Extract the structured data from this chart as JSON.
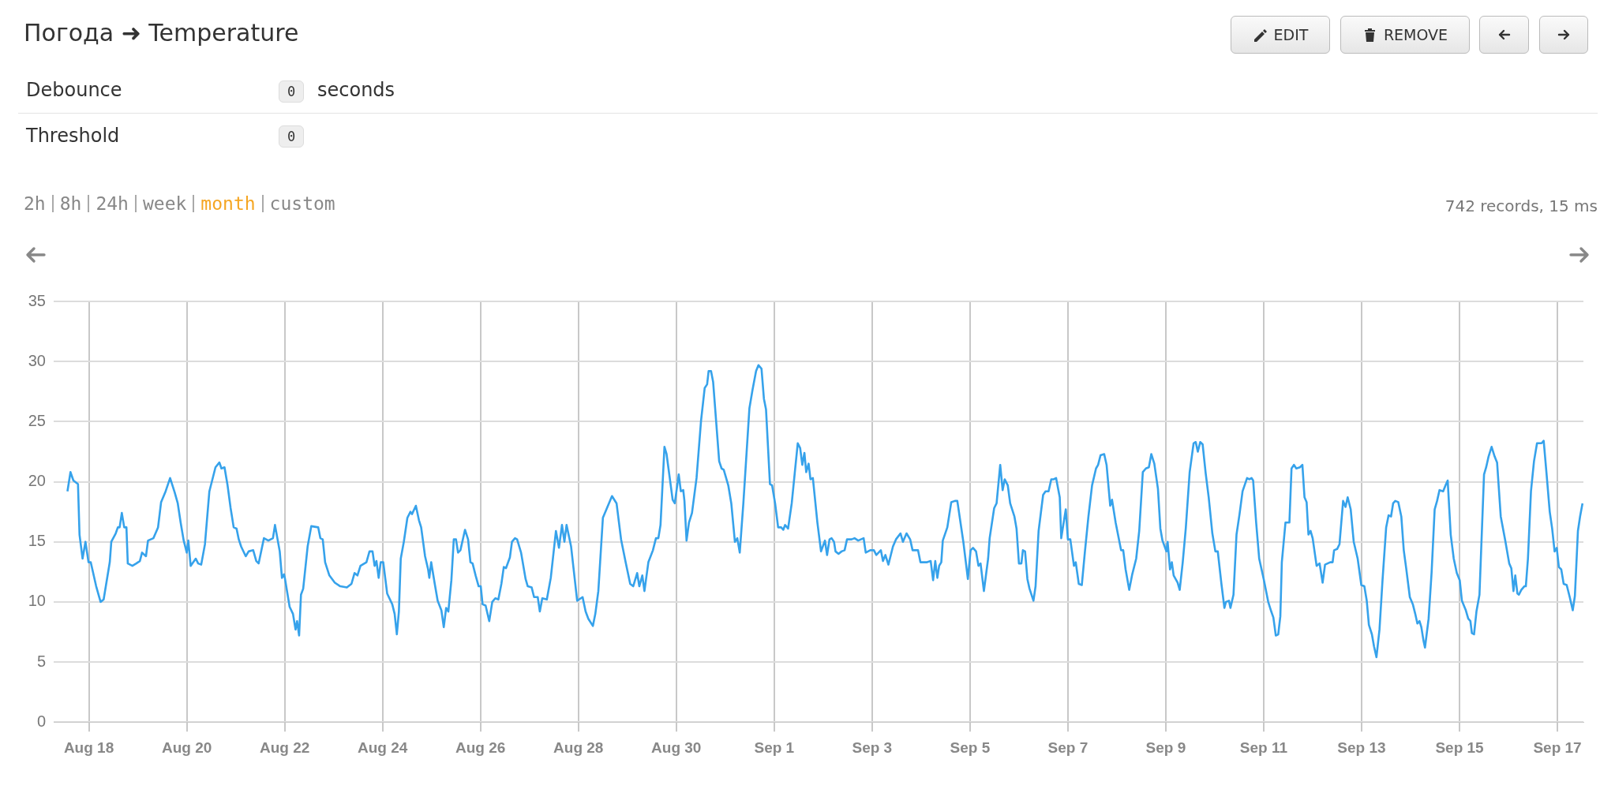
{
  "chart_data": {
    "type": "line",
    "title": "Погода ➜ Temperature",
    "annotations": [
      "EDIT",
      "REMOVE",
      "Debounce",
      "0",
      "seconds",
      "Threshold",
      "0",
      "2h",
      "8h",
      "24h",
      "week",
      "month",
      "custom",
      "742 records, 15 ms"
    ],
    "color": "#36a2eb",
    "marker": "none",
    "grid": true,
    "xlim": [
      "--08-17T06:45",
      "--09-17T12:45"
    ],
    "xticks": [
      {
        "value": "--08-18",
        "label": "Aug 18"
      },
      {
        "value": "--08-20",
        "label": "Aug 20"
      },
      {
        "value": "--08-22",
        "label": "Aug 22"
      },
      {
        "value": "--08-24",
        "label": "Aug 24"
      },
      {
        "value": "--08-26",
        "label": "Aug 26"
      },
      {
        "value": "--08-28",
        "label": "Aug 28"
      },
      {
        "value": "--08-30",
        "label": "Aug 30"
      },
      {
        "value": "--09-01",
        "label": "Sep 1"
      },
      {
        "value": "--09-03",
        "label": "Sep 3"
      },
      {
        "value": "--09-05",
        "label": "Sep 5"
      },
      {
        "value": "--09-07",
        "label": "Sep 7"
      },
      {
        "value": "--09-09",
        "label": "Sep 9"
      },
      {
        "value": "--09-11",
        "label": "Sep 11"
      },
      {
        "value": "--09-13",
        "label": "Sep 13"
      },
      {
        "value": "--09-15",
        "label": "Sep 15"
      },
      {
        "value": "--09-17",
        "label": "Sep 17"
      }
    ],
    "ylim": [
      0,
      35
    ],
    "yticks": [
      0,
      5,
      10,
      15,
      20,
      25,
      30,
      35
    ],
    "x": [
      "--08-17T13:30",
      "--08-17T15:00",
      "--08-17T16:25",
      "--08-17T18:40",
      "--08-17T19:25",
      "--08-17T20:55",
      "--08-17T22:20",
      "--08-17T23:50",
      "--08-18T00:55",
      "--08-18T03:35",
      "--08-18T05:45",
      "--08-18T07:15",
      "--08-18T10:15",
      "--08-18T11:00",
      "--08-18T13:10",
      "--08-18T14:13",
      "--08-18T15:05",
      "--08-18T16:10",
      "--08-18T17:20",
      "--08-18T18:25",
      "--08-18T19:05",
      "--08-18T21:20",
      "--08-18T23:15",
      "--08-19T01:00",
      "--08-19T02:05",
      "--08-19T04:00",
      "--08-19T05:00",
      "--08-19T07:40",
      "--08-19T09:55",
      "--08-19T11:25",
      "--08-19T13:38",
      "--08-19T15:50",
      "--08-19T18:05",
      "--08-19T19:35",
      "--08-19T21:00",
      "--08-19T22:30",
      "--08-20T00:00",
      "--08-20T00:45",
      "--08-20T01:55",
      "--08-20T04:25",
      "--08-20T05:35",
      "--08-20T07:05",
      "--08-20T08:55",
      "--08-20T11:05",
      "--08-20T12:35",
      "--08-20T14:05",
      "--08-20T16:00",
      "--08-20T17:00",
      "--08-20T18:30",
      "--08-20T20:00",
      "--08-20T21:30",
      "--08-20T23:00",
      "--08-21T00:25",
      "--08-21T01:30",
      "--08-21T02:40",
      "--08-21T04:55",
      "--08-21T06:20",
      "--08-21T08:35",
      "--08-21T10:05",
      "--08-21T11:15",
      "--08-21T13:50",
      "--08-21T16:00",
      "--08-21T18:15",
      "--08-21T19:15",
      "--08-21T21:35",
      "--08-21T22:40",
      "--08-21T23:40",
      "--08-22T00:05",
      "--08-22T02:25",
      "--08-22T04:05",
      "--08-22T05:20",
      "--08-22T06:05",
      "--08-22T07:05",
      "--08-22T08:00",
      "--08-22T09:05",
      "--08-22T11:15",
      "--08-22T13:03",
      "--08-22T16:27",
      "--08-22T17:30",
      "--08-22T18:40",
      "--08-22T19:50",
      "--08-22T21:55",
      "--08-23T00:35",
      "--08-23T03:15",
      "--08-23T06:30",
      "--08-23T08:45",
      "--08-23T10:15",
      "--08-23T11:40",
      "--08-23T13:10",
      "--08-23T16:05",
      "--08-23T17:35",
      "--08-23T19:05",
      "--08-23T20:05",
      "--08-23T21:00",
      "--08-23T22:05",
      "--08-23T23:05",
      "--08-24T00:20",
      "--08-24T02:15",
      "--08-24T04:45",
      "--08-24T05:55",
      "--08-24T07:00",
      "--08-24T08:00",
      "--08-24T08:55",
      "--08-24T10:25",
      "--08-24T12:10",
      "--08-24T13:40",
      "--08-24T14:25",
      "--08-24T16:20",
      "--08-24T17:50",
      "--08-24T18:55",
      "--08-24T20:50",
      "--08-24T22:20",
      "--08-24T22:55",
      "--08-24T23:50",
      "--08-25T01:35",
      "--08-25T03:00",
      "--08-25T04:50",
      "--08-25T06:00",
      "--08-25T07:10",
      "--08-25T08:15",
      "--08-25T09:44",
      "--08-25T10:55",
      "--08-25T12:00",
      "--08-25T13:00",
      "--08-25T14:10",
      "--08-25T16:25",
      "--08-25T17:55",
      "--08-25T19:05",
      "--08-25T20:08",
      "--08-25T21:37",
      "--08-25T23:06",
      "--08-26T00:08",
      "--08-26T01:02",
      "--08-26T02:31",
      "--08-26T04:18",
      "--08-26T05:47",
      "--08-26T07:16",
      "--08-26T08:46",
      "--08-26T10:15",
      "--08-26T11:26",
      "--08-26T12:29",
      "--08-26T14:25",
      "--08-26T15:27",
      "--08-26T16:56",
      "--08-26T17:58",
      "--08-26T19:54",
      "--08-26T22:08",
      "--08-26T23:10",
      "--08-27T01:06",
      "--08-27T02:17",
      "--08-27T04:04",
      "--08-27T05:06",
      "--08-27T06:18",
      "--08-27T08:32",
      "--08-27T10:28",
      "--08-27T13:00",
      "--08-27T14:29",
      "--08-27T15:58",
      "--08-27T17:09",
      "--08-27T18:12",
      "--08-27T20:26",
      "--08-27T21:37",
      "--08-27T23:24",
      "--08-28T02:04",
      "--08-28T03:33",
      "--08-28T04:53",
      "--08-28T07:07",
      "--08-28T08:18",
      "--08-28T09:47",
      "--08-28T12:01",
      "--08-28T14:15",
      "--08-28T16:29",
      "--08-28T18:43",
      "--08-28T20:56",
      "--08-28T23:10",
      "--08-29T01:24",
      "--08-29T02:53",
      "--08-29T04:49",
      "--08-29T05:52",
      "--08-29T07:21",
      "--08-29T08:23",
      "--08-29T10:19",
      "--08-29T12:33",
      "--08-29T14:02",
      "--08-29T15:13",
      "--08-29T16:16",
      "--08-29T18:12",
      "--08-29T19:14",
      "--08-29T22:13",
      "--08-29T23:16",
      "--08-30T01:12",
      "--08-30T02:14",
      "--08-30T03:25",
      "--08-30T04:00",
      "--08-30T05:02",
      "--08-30T06:13",
      "--08-30T07:42",
      "--08-30T09:56",
      "--08-30T12:09",
      "--08-30T13:56",
      "--08-30T15:07",
      "--08-30T15:51",
      "--08-30T17:02",
      "--08-30T18:04",
      "--08-30T21:02",
      "--08-30T22:13",
      "--08-30T23:16",
      "--08-31T01:29",
      "--08-31T02:58",
      "--08-31T04:44",
      "--08-31T05:55",
      "--08-31T07:07",
      "--08-31T08:53",
      "--08-31T11:51",
      "--08-31T13:20",
      "--08-31T15:07",
      "--08-31T16:18",
      "--08-31T17:47",
      "--08-31T18:58",
      "--08-31T20:00",
      "--08-31T21:56",
      "--08-31T22:58",
      "--09-01T00:27",
      "--09-01T01:56",
      "--09-01T03:25",
      "--09-01T04:27",
      "--09-01T05:20",
      "--09-01T06:49",
      "--09-01T08:36",
      "--09-01T10:04",
      "--09-01T11:33",
      "--09-01T12:44",
      "--09-01T13:47",
      "--09-01T14:49",
      "--09-01T15:42",
      "--09-01T16:53",
      "--09-01T17:47",
      "--09-01T18:58",
      "--09-01T21:11",
      "--09-01T22:58",
      "--09-02T00:53",
      "--09-02T01:56",
      "--09-02T03:07",
      "--09-02T04:09",
      "--09-02T05:20",
      "--09-02T06:04",
      "--09-02T07:33",
      "--09-02T09:02",
      "--09-02T10:31",
      "--09-02T11:42",
      "--09-02T13:56",
      "--09-02T15:24",
      "--09-02T17:11",
      "--09-02T19:51",
      "--09-02T20:53",
      "--09-02T23:07",
      "--09-03T00:53",
      "--09-03T02:04",
      "--09-03T04:18",
      "--09-03T05:20",
      "--09-03T06:31",
      "--09-03T08:00",
      "--09-03T10:13",
      "--09-03T11:42",
      "--09-03T13:56",
      "--09-03T15:07",
      "--09-03T16:53",
      "--09-03T18:40",
      "--09-03T19:51",
      "--09-03T22:31",
      "--09-03T23:42",
      "--09-04T02:58",
      "--09-04T04:44",
      "--09-04T05:55",
      "--09-04T06:58",
      "--09-04T08:00",
      "--09-04T08:53",
      "--09-04T09:56",
      "--09-04T10:40",
      "--09-04T12:53",
      "--09-04T14:49",
      "--09-04T16:36",
      "--09-04T17:47",
      "--09-04T20:44",
      "--09-04T22:58",
      "--09-05T00:18",
      "--09-05T01:29",
      "--09-05T02:58",
      "--09-05T04:09",
      "--09-05T05:11",
      "--09-05T06:49",
      "--09-05T08:53",
      "--09-05T09:38",
      "--09-05T11:51",
      "--09-05T13:02",
      "--09-05T14:49",
      "--09-05T16:00",
      "--09-05T17:02",
      "--09-05T18:31",
      "--09-05T19:42",
      "--09-05T21:47",
      "--09-05T22:49",
      "--09-06T00:00",
      "--09-06T01:11",
      "--09-06T01:56",
      "--09-06T03:00",
      "--09-06T04:09",
      "--09-06T05:11",
      "--09-06T07:07",
      "--09-06T08:09",
      "--09-06T09:38",
      "--09-06T11:51",
      "--09-06T13:02",
      "--09-06T14:31",
      "--09-06T15:51",
      "--09-06T17:02",
      "--09-06T18:13",
      "--09-06T20:00",
      "--09-06T20:44",
      "--09-06T21:56",
      "--09-06T22:58",
      "--09-07T00:00",
      "--09-07T01:11",
      "--09-07T02:58",
      "--09-07T03:51",
      "--09-07T05:20",
      "--09-07T06:49",
      "--09-07T08:18",
      "--09-07T10:04",
      "--09-07T11:51",
      "--09-07T13:47",
      "--09-07T14:49",
      "--09-07T16:00",
      "--09-07T17:47",
      "--09-07T18:58",
      "--09-07T20:44",
      "--09-07T21:38",
      "--09-07T23:24",
      "--09-08T02:04",
      "--09-08T03:07",
      "--09-08T04:18",
      "--09-08T06:04",
      "--09-08T07:33",
      "--09-08T09:29",
      "--09-08T10:58",
      "--09-08T12:44",
      "--09-08T14:13",
      "--09-08T15:42",
      "--09-08T16:53",
      "--09-08T18:22",
      "--09-08T20:09",
      "--09-08T21:20",
      "--09-08T22:22",
      "--09-09T00:18",
      "--09-09T00:53",
      "--09-09T02:04",
      "--09-09T02:58",
      "--09-09T03:51",
      "--09-09T05:47",
      "--09-09T06:49",
      "--09-09T08:18",
      "--09-09T09:47",
      "--09-09T11:42",
      "--09-09T13:38",
      "--09-09T14:40",
      "--09-09T15:42",
      "--09-09T16:53",
      "--09-09T18:04",
      "--09-09T19:33",
      "--09-09T21:02",
      "--09-09T22:49",
      "--09-10T00:18",
      "--09-10T01:29",
      "--09-10T03:16",
      "--09-10T04:44",
      "--09-10T05:29",
      "--09-10T06:58",
      "--09-10T07:42",
      "--09-10T09:11",
      "--09-10T10:40",
      "--09-10T12:09",
      "--09-10T13:38",
      "--09-10T15:51",
      "--09-10T16:53",
      "--09-10T18:04",
      "--09-10T18:49",
      "--09-10T20:18",
      "--09-10T21:47",
      "--09-11T00:00",
      "--09-11T02:13",
      "--09-11T03:42",
      "--09-11T04:44",
      "--09-11T05:56",
      "--09-11T07:07",
      "--09-11T08:09",
      "--09-11T08:53",
      "--09-11T10:40",
      "--09-11T12:36",
      "--09-11T13:38",
      "--09-11T14:49",
      "--09-11T16:00",
      "--09-11T17:47",
      "--09-11T18:58",
      "--09-11T20:00",
      "--09-11T21:02",
      "--09-11T21:56",
      "--09-11T22:58",
      "--09-12T00:00",
      "--09-12T01:56",
      "--09-12T03:24",
      "--09-12T04:53",
      "--09-12T06:04",
      "--09-12T08:36",
      "--09-12T09:47",
      "--09-12T10:31",
      "--09-12T12:00",
      "--09-12T13:09",
      "--09-12T14:56",
      "--09-12T16:07",
      "--09-12T17:10",
      "--09-12T18:39",
      "--09-12T20:08",
      "--09-12T22:04",
      "--09-12T23:51",
      "--09-13T01:20",
      "--09-13T02:31",
      "--09-13T03:34",
      "--09-13T05:03",
      "--09-13T06:05",
      "--09-13T07:17",
      "--09-13T08:46",
      "--09-13T10:15",
      "--09-13T12:02",
      "--09-13T13:13",
      "--09-13T14:25",
      "--09-13T15:27",
      "--09-13T16:30",
      "--09-13T17:59",
      "--09-13T19:28",
      "--09-13T20:40",
      "--09-13T21:51",
      "--09-13T23:38",
      "--09-14T01:07",
      "--09-14T02:18",
      "--09-14T03:20",
      "--09-14T04:23",
      "--09-14T05:17",
      "--09-14T06:19",
      "--09-14T07:04",
      "--09-14T08:51",
      "--09-14T10:20",
      "--09-14T11:49",
      "--09-14T13:00",
      "--09-14T14:11",
      "--09-14T15:58",
      "--09-14T17:10",
      "--09-14T18:12",
      "--09-14T19:41",
      "--09-14T21:10",
      "--09-14T22:40",
      "--09-15T00:07",
      "--09-15T01:10",
      "--09-15T03:06",
      "--09-15T04:17",
      "--09-15T05:20",
      "--09-15T06:04",
      "--09-15T07:07",
      "--09-15T08:18",
      "--09-15T09:47",
      "--09-15T12:01",
      "--09-15T13:04",
      "--09-15T14:15",
      "--09-15T15:44",
      "--09-15T17:13",
      "--09-15T18:25",
      "--09-15T20:13",
      "--09-15T22:26",
      "--09-16T00:22",
      "--09-16T01:24",
      "--09-16T02:27",
      "--09-16T03:20",
      "--09-16T04:23",
      "--09-16T05:07",
      "--09-16T06:18",
      "--09-16T07:47",
      "--09-16T08:31",
      "--09-16T09:33",
      "--09-16T11:02",
      "--09-16T12:31",
      "--09-16T14:00",
      "--09-16T16:14",
      "--09-16T17:16",
      "--09-16T18:45",
      "--09-16T20:14",
      "--09-16T21:25",
      "--09-16T22:37",
      "--09-16T23:40",
      "--09-17T00:42",
      "--09-17T01:53",
      "--09-17T03:04",
      "--09-17T04:33",
      "--09-17T06:02",
      "--09-17T07:31",
      "--09-17T08:34",
      "--09-17T10:03",
      "--09-17T11:06",
      "--09-17T12:18"
    ],
    "values": [
      19.2,
      20.8,
      20.1,
      19.8,
      15.6,
      13.6,
      15.0,
      13.3,
      13.3,
      11.3,
      10.0,
      10.2,
      13.3,
      15.0,
      15.7,
      16.2,
      16.2,
      17.4,
      16.2,
      16.2,
      13.2,
      13.0,
      13.2,
      13.4,
      14.1,
      13.8,
      15.1,
      15.3,
      16.2,
      18.3,
      19.2,
      20.3,
      19.1,
      18.2,
      16.6,
      15.1,
      14.1,
      15.1,
      13.0,
      13.6,
      13.2,
      13.1,
      14.8,
      19.2,
      20.2,
      21.2,
      21.6,
      21.1,
      21.2,
      19.7,
      17.8,
      16.2,
      16.1,
      15.2,
      14.6,
      13.8,
      14.2,
      14.3,
      13.4,
      13.2,
      15.3,
      15.1,
      15.3,
      16.4,
      14.2,
      12.0,
      12.3,
      12.0,
      9.6,
      9.0,
      7.7,
      8.4,
      7.2,
      10.6,
      11.1,
      14.6,
      16.3,
      16.2,
      15.3,
      15.2,
      13.3,
      12.2,
      11.6,
      11.3,
      11.2,
      11.5,
      12.4,
      12.2,
      13.0,
      13.3,
      14.2,
      14.2,
      13.0,
      13.4,
      12.0,
      13.3,
      13.3,
      10.7,
      9.8,
      9.0,
      7.3,
      9.2,
      13.6,
      15.0,
      17.0,
      17.5,
      17.3,
      18.0,
      16.8,
      16.2,
      13.8,
      12.7,
      12.0,
      13.3,
      11.5,
      10.1,
      9.3,
      7.9,
      9.5,
      9.2,
      11.8,
      15.2,
      15.2,
      14.1,
      14.3,
      16.0,
      15.2,
      13.3,
      13.2,
      12.2,
      11.3,
      11.3,
      9.8,
      9.7,
      8.4,
      10.0,
      10.3,
      10.2,
      11.5,
      12.9,
      12.8,
      13.7,
      15.0,
      15.3,
      15.2,
      14.1,
      11.9,
      11.3,
      11.2,
      10.4,
      10.4,
      9.2,
      10.3,
      10.2,
      12.0,
      15.9,
      14.5,
      16.4,
      15.0,
      16.4,
      14.6,
      12.8,
      10.1,
      10.4,
      9.2,
      8.6,
      8.0,
      9.0,
      10.9,
      17.0,
      17.9,
      18.8,
      18.2,
      15.2,
      13.3,
      11.5,
      11.3,
      12.4,
      11.3,
      12.2,
      10.9,
      13.3,
      14.3,
      15.3,
      15.3,
      16.4,
      22.9,
      22.3,
      18.5,
      18.2,
      20.6,
      19.2,
      19.3,
      18.4,
      15.1,
      16.6,
      17.4,
      20.3,
      25.1,
      27.8,
      28.1,
      29.2,
      29.2,
      28.3,
      21.7,
      21.1,
      21.0,
      19.7,
      18.2,
      15.0,
      15.3,
      14.1,
      18.2,
      26.1,
      27.6,
      29.2,
      29.7,
      29.4,
      26.9,
      26.0,
      19.8,
      19.7,
      18.2,
      16.2,
      16.2,
      16.0,
      16.4,
      16.1,
      18.2,
      20.7,
      23.2,
      22.8,
      21.4,
      22.4,
      20.8,
      21.5,
      20.2,
      20.3,
      16.6,
      14.2,
      15.1,
      13.9,
      15.2,
      15.3,
      15.0,
      14.2,
      14.0,
      14.2,
      14.3,
      15.2,
      15.2,
      15.3,
      15.1,
      15.3,
      14.1,
      14.3,
      14.3,
      13.9,
      14.3,
      13.4,
      13.9,
      13.1,
      14.6,
      15.2,
      15.7,
      15.0,
      15.7,
      15.2,
      14.3,
      14.3,
      13.3,
      13.3,
      13.4,
      11.8,
      13.4,
      12.0,
      13.0,
      13.3,
      15.1,
      16.2,
      18.3,
      18.4,
      18.4,
      15.0,
      11.9,
      14.3,
      14.5,
      14.2,
      13.0,
      13.2,
      10.9,
      13.6,
      15.3,
      17.8,
      18.2,
      21.4,
      19.3,
      20.2,
      19.7,
      18.2,
      17.1,
      16.1,
      13.2,
      13.2,
      14.3,
      14.2,
      11.9,
      11.1,
      10.1,
      11.3,
      15.9,
      18.9,
      19.2,
      19.2,
      20.2,
      20.2,
      20.3,
      18.7,
      15.3,
      16.6,
      17.7,
      15.2,
      15.2,
      13.0,
      13.3,
      11.5,
      11.4,
      14.1,
      17.1,
      19.7,
      21.1,
      21.4,
      22.2,
      22.3,
      21.4,
      18.0,
      18.5,
      16.6,
      14.3,
      14.3,
      12.7,
      11.0,
      12.3,
      13.6,
      15.9,
      20.8,
      21.1,
      21.2,
      22.3,
      21.5,
      19.4,
      16.1,
      15.1,
      14.2,
      15.0,
      12.7,
      13.3,
      12.2,
      11.6,
      11.0,
      13.3,
      16.1,
      20.8,
      23.2,
      23.3,
      22.5,
      23.3,
      23.1,
      20.7,
      18.7,
      15.7,
      14.2,
      14.2,
      11.5,
      9.5,
      10.0,
      10.1,
      9.5,
      10.6,
      15.6,
      17.3,
      19.2,
      20.3,
      20.2,
      20.3,
      20.1,
      16.6,
      13.6,
      11.9,
      10.0,
      9.2,
      8.7,
      7.2,
      7.3,
      8.8,
      13.3,
      16.6,
      16.6,
      21.1,
      21.4,
      21.1,
      21.2,
      21.4,
      18.7,
      18.3,
      15.6,
      15.9,
      15.3,
      13.0,
      13.2,
      11.6,
      13.1,
      13.3,
      13.3,
      14.3,
      14.4,
      14.8,
      18.4,
      17.9,
      18.7,
      17.7,
      15.0,
      13.6,
      11.4,
      11.3,
      10.1,
      8.1,
      7.3,
      6.3,
      5.4,
      7.7,
      11.8,
      16.2,
      17.2,
      17.1,
      18.2,
      18.4,
      18.3,
      17.1,
      14.3,
      12.8,
      10.4,
      9.8,
      9.0,
      8.2,
      8.4,
      7.9,
      6.8,
      6.2,
      8.6,
      12.5,
      17.7,
      18.4,
      19.3,
      19.2,
      19.7,
      20.1,
      15.6,
      13.6,
      12.4,
      11.8,
      10.1,
      9.3,
      8.6,
      8.4,
      7.4,
      7.3,
      9.2,
      10.6,
      20.6,
      21.2,
      22.1,
      22.9,
      22.1,
      21.6,
      17.1,
      15.1,
      13.2,
      12.8,
      10.9,
      12.2,
      10.7,
      10.6,
      11.0,
      11.3,
      11.3,
      13.6,
      19.2,
      21.7,
      23.2,
      23.2,
      23.4,
      20.5,
      17.5,
      16.1,
      14.2,
      14.5,
      12.9,
      12.7,
      11.5,
      11.4,
      10.4,
      9.3,
      10.5,
      15.9,
      17.1,
      18.2
    ]
  }
}
